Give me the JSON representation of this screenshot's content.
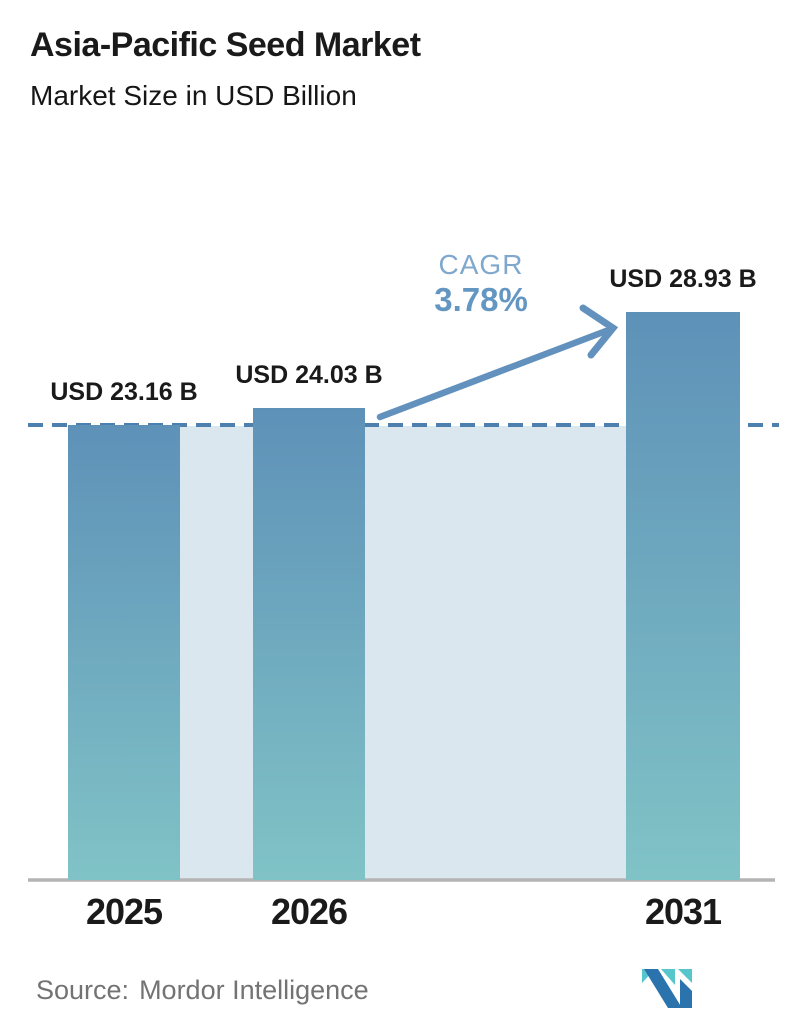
{
  "header": {
    "title": "Asia-Pacific Seed Market",
    "subtitle": "Market Size in USD Billion"
  },
  "chart_data": {
    "type": "bar",
    "title": "Asia-Pacific Seed Market",
    "ylabel": "Market Size in USD Billion",
    "xlabel": "",
    "categories": [
      "2025",
      "2026",
      "2031"
    ],
    "values": [
      23.16,
      24.03,
      28.93
    ],
    "value_labels": [
      "USD 23.16 B",
      "USD 24.03 B",
      "USD 28.93 B"
    ],
    "ylim": [
      0,
      30
    ],
    "grid": false,
    "legend": "none",
    "baseline_value": 23.16,
    "annotations": {
      "cagr_label": "CAGR",
      "cagr_value": "3.78%"
    },
    "colors": {
      "bar_gradient_top": "#5e91b8",
      "bar_gradient_bottom": "#80c3c6",
      "baseline_panel": "#dbe7ee",
      "dashed_line": "#4d80ad",
      "arrow": "#6291bd",
      "cagr_label": "#7fa8cc",
      "cagr_value": "#6496c2",
      "axis_line": "#b4b4b4",
      "text": "#1a1a1a",
      "source_text": "#737373",
      "logo_navy": "#2a73ad",
      "logo_teal": "#56c5cc"
    }
  },
  "footer": {
    "source_label": "Source:",
    "source_name": "Mordor Intelligence",
    "logo_name": "mordor-intelligence-logo"
  }
}
